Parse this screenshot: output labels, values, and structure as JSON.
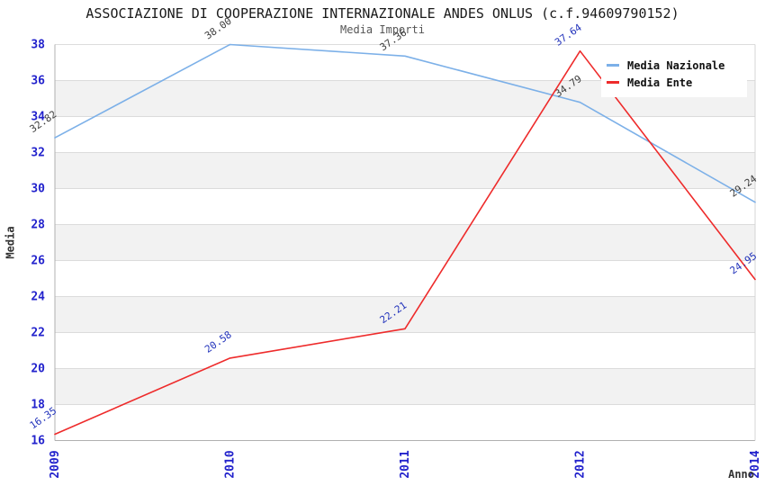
{
  "header": {
    "title": "ASSOCIAZIONE DI COOPERAZIONE INTERNAZIONALE ANDES ONLUS (c.f.94609790152)",
    "subtitle": "Media Importi"
  },
  "chart_data": {
    "type": "line",
    "categories": [
      "2009",
      "2010",
      "2011",
      "2012",
      "2014"
    ],
    "series": [
      {
        "name": "Media Nazionale",
        "color": "#7cb0e8",
        "label_color": "#3c3c3c",
        "values": [
          32.82,
          38.0,
          37.36,
          34.79,
          29.24
        ]
      },
      {
        "name": "Media Ente",
        "color": "#ee2b2b",
        "label_color": "#2233bb",
        "values": [
          16.35,
          20.58,
          22.21,
          37.64,
          24.95
        ]
      }
    ],
    "xlabel": "Anno",
    "ylabel": "Media",
    "ylim": [
      16,
      38
    ],
    "ystep": 2,
    "grid": "horizontal",
    "legend_position": "top-right",
    "tick_color": "#2222cc",
    "band_color": "#f2f2f2",
    "gridline_color": "#dcdcdc",
    "axis_color": "#b0b0b0",
    "right_border_color": "#d4d4d4"
  }
}
